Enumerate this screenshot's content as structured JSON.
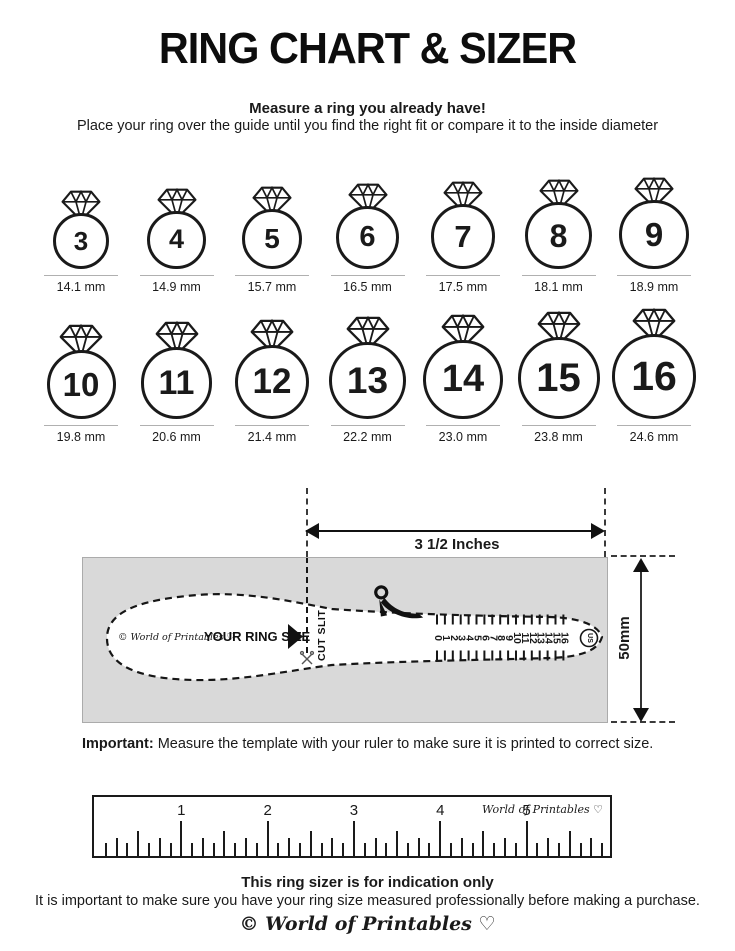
{
  "title": "RING CHART & SIZER",
  "intro": {
    "heading": "Measure a ring you already have!",
    "subheading": "Place your ring over the guide until you find the right fit or compare it to the inside diameter"
  },
  "ring_chart": {
    "rows": [
      {
        "rings": [
          {
            "size": "3",
            "diameter": "14.1 mm"
          },
          {
            "size": "4",
            "diameter": "14.9 mm"
          },
          {
            "size": "5",
            "diameter": "15.7 mm"
          },
          {
            "size": "6",
            "diameter": "16.5 mm"
          },
          {
            "size": "7",
            "diameter": "17.5 mm"
          },
          {
            "size": "8",
            "diameter": "18.1 mm"
          },
          {
            "size": "9",
            "diameter": "18.9 mm"
          }
        ]
      },
      {
        "rings": [
          {
            "size": "10",
            "diameter": "19.8 mm"
          },
          {
            "size": "11",
            "diameter": "20.6 mm"
          },
          {
            "size": "12",
            "diameter": "21.4 mm"
          },
          {
            "size": "13",
            "diameter": "22.2 mm"
          },
          {
            "size": "14",
            "diameter": "23.0 mm"
          },
          {
            "size": "15",
            "diameter": "23.8 mm"
          },
          {
            "size": "16",
            "diameter": "24.6 mm"
          }
        ]
      }
    ]
  },
  "sizer": {
    "width_label": "3 1/2 Inches",
    "height_label": "50mm",
    "brand": "© World of Printables ♡",
    "ring_size_label": "YOUR RING SIZE",
    "cut_slit_label": "CUT SLIT",
    "scale_numbers": [
      "0",
      "1",
      "2",
      "3",
      "4",
      "5",
      "6",
      "7",
      "8",
      "9",
      "10",
      "11",
      "12",
      "13",
      "14",
      "15",
      "16"
    ],
    "unit_badge": "US"
  },
  "important_note": {
    "bold_label": "Important:",
    "text": " Measure the template with your ruler to make sure it is printed to correct size."
  },
  "ruler": {
    "numbers": [
      "1",
      "2",
      "3",
      "4",
      "5"
    ],
    "brand": "World of Printables ♡"
  },
  "footer": {
    "heading": "This ring sizer is for indication only",
    "text": "It is important to make sure you have your ring size measured professionally before making a purchase.",
    "brand": "© World of Printables ♡"
  },
  "colors": {
    "ink": "#1a1a1a",
    "template_gray": "#d9d9d9"
  }
}
